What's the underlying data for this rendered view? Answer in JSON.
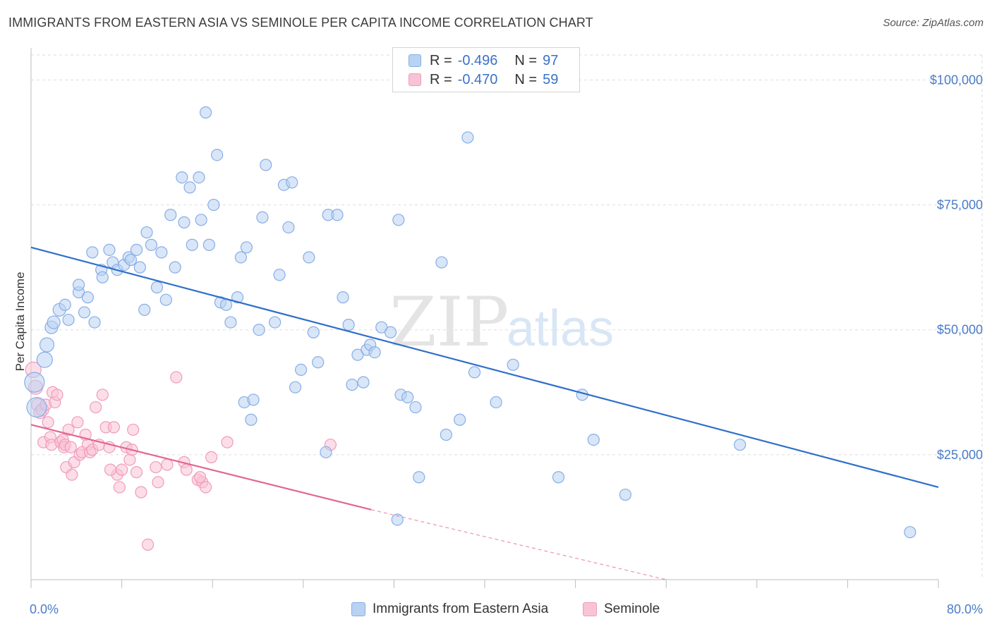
{
  "title": "IMMIGRANTS FROM EASTERN ASIA VS SEMINOLE PER CAPITA INCOME CORRELATION CHART",
  "source": "Source: ZipAtlas.com",
  "watermark": {
    "zip": "ZIP",
    "atlas": "atlas"
  },
  "legend": {
    "rows": [
      {
        "r_label": "R =",
        "r_value": "-0.496",
        "n_label": "N =",
        "n_value": "97"
      },
      {
        "r_label": "R =",
        "r_value": "-0.470",
        "n_label": "N =",
        "n_value": "59"
      }
    ]
  },
  "colors": {
    "blue_fill": "#b9d2f2",
    "blue_stroke": "#86aee6",
    "blue_line": "#2f6fca",
    "pink_fill": "#f9c3d6",
    "pink_stroke": "#f09bbb",
    "pink_line": "#e3668f",
    "grid": "#dddddd",
    "tick_label": "#4a7cc9"
  },
  "chart_data": {
    "type": "scatter",
    "xlabel": "",
    "ylabel": "Per Capita Income",
    "xlim": [
      0,
      80
    ],
    "ylim": [
      0,
      105000
    ],
    "x_tick_labels": [
      "0.0%",
      "80.0%"
    ],
    "y_ticks": [
      25000,
      50000,
      75000,
      100000
    ],
    "y_tick_labels": [
      "$25,000",
      "$50,000",
      "$75,000",
      "$100,000"
    ],
    "grid": true,
    "legend_position": "bottom",
    "series": [
      {
        "name": "Immigrants from Eastern Asia",
        "color": "#b9d2f2",
        "trend": {
          "x": [
            0,
            80
          ],
          "y": [
            66500,
            18500
          ]
        },
        "points": [
          {
            "x": 0.3,
            "y": 39500,
            "r": 14
          },
          {
            "x": 0.5,
            "y": 34500,
            "r": 14
          },
          {
            "x": 1.2,
            "y": 44000,
            "r": 11
          },
          {
            "x": 1.4,
            "y": 47000,
            "r": 10
          },
          {
            "x": 1.8,
            "y": 50500,
            "r": 9
          },
          {
            "x": 2.0,
            "y": 51500,
            "r": 9
          },
          {
            "x": 2.5,
            "y": 54000,
            "r": 9
          },
          {
            "x": 3.0,
            "y": 55000,
            "r": 8
          },
          {
            "x": 3.3,
            "y": 52000,
            "r": 8
          },
          {
            "x": 4.2,
            "y": 57500,
            "r": 8
          },
          {
            "x": 4.2,
            "y": 59000,
            "r": 8
          },
          {
            "x": 4.7,
            "y": 53500,
            "r": 8
          },
          {
            "x": 5.0,
            "y": 56500,
            "r": 8
          },
          {
            "x": 5.4,
            "y": 65500,
            "r": 8
          },
          {
            "x": 5.6,
            "y": 51500,
            "r": 8
          },
          {
            "x": 6.2,
            "y": 62000,
            "r": 8
          },
          {
            "x": 6.3,
            "y": 60500,
            "r": 8
          },
          {
            "x": 6.9,
            "y": 66000,
            "r": 8
          },
          {
            "x": 7.2,
            "y": 63500,
            "r": 8
          },
          {
            "x": 7.6,
            "y": 62000,
            "r": 8
          },
          {
            "x": 8.2,
            "y": 63000,
            "r": 8
          },
          {
            "x": 8.6,
            "y": 64500,
            "r": 8
          },
          {
            "x": 8.8,
            "y": 64000,
            "r": 8
          },
          {
            "x": 9.3,
            "y": 66000,
            "r": 8
          },
          {
            "x": 9.6,
            "y": 62500,
            "r": 8
          },
          {
            "x": 10.0,
            "y": 54000,
            "r": 8
          },
          {
            "x": 10.2,
            "y": 69500,
            "r": 8
          },
          {
            "x": 10.6,
            "y": 67000,
            "r": 8
          },
          {
            "x": 11.1,
            "y": 58500,
            "r": 8
          },
          {
            "x": 11.5,
            "y": 65500,
            "r": 8
          },
          {
            "x": 11.9,
            "y": 56000,
            "r": 8
          },
          {
            "x": 12.3,
            "y": 73000,
            "r": 8
          },
          {
            "x": 12.7,
            "y": 62500,
            "r": 8
          },
          {
            "x": 13.3,
            "y": 80500,
            "r": 8
          },
          {
            "x": 13.5,
            "y": 71500,
            "r": 8
          },
          {
            "x": 14.0,
            "y": 78500,
            "r": 8
          },
          {
            "x": 14.2,
            "y": 67000,
            "r": 8
          },
          {
            "x": 14.8,
            "y": 80500,
            "r": 8
          },
          {
            "x": 15.0,
            "y": 72000,
            "r": 8
          },
          {
            "x": 15.4,
            "y": 93500,
            "r": 8
          },
          {
            "x": 15.7,
            "y": 67000,
            "r": 8
          },
          {
            "x": 16.1,
            "y": 75000,
            "r": 8
          },
          {
            "x": 16.4,
            "y": 85000,
            "r": 8
          },
          {
            "x": 16.7,
            "y": 55500,
            "r": 8
          },
          {
            "x": 17.2,
            "y": 55000,
            "r": 8
          },
          {
            "x": 17.6,
            "y": 51500,
            "r": 8
          },
          {
            "x": 18.2,
            "y": 56500,
            "r": 8
          },
          {
            "x": 18.5,
            "y": 64500,
            "r": 8
          },
          {
            "x": 18.8,
            "y": 35500,
            "r": 8
          },
          {
            "x": 19.0,
            "y": 66500,
            "r": 8
          },
          {
            "x": 19.4,
            "y": 32000,
            "r": 8
          },
          {
            "x": 19.6,
            "y": 36000,
            "r": 8
          },
          {
            "x": 20.1,
            "y": 50000,
            "r": 8
          },
          {
            "x": 20.4,
            "y": 72500,
            "r": 8
          },
          {
            "x": 20.7,
            "y": 83000,
            "r": 8
          },
          {
            "x": 21.5,
            "y": 51500,
            "r": 8
          },
          {
            "x": 21.9,
            "y": 61000,
            "r": 8
          },
          {
            "x": 22.3,
            "y": 79000,
            "r": 8
          },
          {
            "x": 22.7,
            "y": 70500,
            "r": 8
          },
          {
            "x": 23.0,
            "y": 79500,
            "r": 8
          },
          {
            "x": 23.3,
            "y": 38500,
            "r": 8
          },
          {
            "x": 23.8,
            "y": 42000,
            "r": 8
          },
          {
            "x": 24.5,
            "y": 64500,
            "r": 8
          },
          {
            "x": 24.9,
            "y": 49500,
            "r": 8
          },
          {
            "x": 25.3,
            "y": 43500,
            "r": 8
          },
          {
            "x": 26.0,
            "y": 25500,
            "r": 8
          },
          {
            "x": 26.2,
            "y": 73000,
            "r": 8
          },
          {
            "x": 27.0,
            "y": 73000,
            "r": 8
          },
          {
            "x": 27.5,
            "y": 56500,
            "r": 8
          },
          {
            "x": 28.0,
            "y": 51000,
            "r": 8
          },
          {
            "x": 28.3,
            "y": 39000,
            "r": 8
          },
          {
            "x": 28.8,
            "y": 45000,
            "r": 8
          },
          {
            "x": 29.3,
            "y": 39500,
            "r": 8
          },
          {
            "x": 29.6,
            "y": 46000,
            "r": 8
          },
          {
            "x": 29.9,
            "y": 47000,
            "r": 8
          },
          {
            "x": 30.3,
            "y": 45500,
            "r": 8
          },
          {
            "x": 30.9,
            "y": 50500,
            "r": 8
          },
          {
            "x": 31.7,
            "y": 49500,
            "r": 8
          },
          {
            "x": 32.3,
            "y": 12000,
            "r": 8
          },
          {
            "x": 32.4,
            "y": 72000,
            "r": 8
          },
          {
            "x": 32.6,
            "y": 37000,
            "r": 8
          },
          {
            "x": 33.2,
            "y": 36500,
            "r": 8
          },
          {
            "x": 33.9,
            "y": 34500,
            "r": 8
          },
          {
            "x": 34.2,
            "y": 20500,
            "r": 8
          },
          {
            "x": 36.2,
            "y": 63500,
            "r": 8
          },
          {
            "x": 36.6,
            "y": 29000,
            "r": 8
          },
          {
            "x": 37.8,
            "y": 32000,
            "r": 8
          },
          {
            "x": 38.5,
            "y": 88500,
            "r": 8
          },
          {
            "x": 39.1,
            "y": 41500,
            "r": 8
          },
          {
            "x": 41.0,
            "y": 35500,
            "r": 8
          },
          {
            "x": 42.5,
            "y": 43000,
            "r": 8
          },
          {
            "x": 46.5,
            "y": 20500,
            "r": 8
          },
          {
            "x": 48.6,
            "y": 37000,
            "r": 8
          },
          {
            "x": 49.6,
            "y": 28000,
            "r": 8
          },
          {
            "x": 52.4,
            "y": 17000,
            "r": 8
          },
          {
            "x": 62.5,
            "y": 27000,
            "r": 8
          },
          {
            "x": 77.5,
            "y": 9500,
            "r": 8
          }
        ]
      },
      {
        "name": "Seminole",
        "color": "#f9c3d6",
        "trend": {
          "x": [
            0,
            30
          ],
          "y": [
            31000,
            14000
          ],
          "dashed_to": {
            "x": 56,
            "y": 0
          }
        },
        "points": [
          {
            "x": 0.2,
            "y": 42000,
            "r": 11
          },
          {
            "x": 0.4,
            "y": 38500,
            "r": 10
          },
          {
            "x": 0.6,
            "y": 35000,
            "r": 9
          },
          {
            "x": 0.8,
            "y": 33500,
            "r": 9
          },
          {
            "x": 1.0,
            "y": 34000,
            "r": 9
          },
          {
            "x": 1.1,
            "y": 27500,
            "r": 8
          },
          {
            "x": 1.3,
            "y": 35000,
            "r": 8
          },
          {
            "x": 1.5,
            "y": 31500,
            "r": 8
          },
          {
            "x": 1.7,
            "y": 28500,
            "r": 8
          },
          {
            "x": 1.8,
            "y": 27000,
            "r": 8
          },
          {
            "x": 1.9,
            "y": 37500,
            "r": 8
          },
          {
            "x": 2.1,
            "y": 35500,
            "r": 8
          },
          {
            "x": 2.3,
            "y": 37000,
            "r": 8
          },
          {
            "x": 2.6,
            "y": 27500,
            "r": 8
          },
          {
            "x": 2.8,
            "y": 28000,
            "r": 8
          },
          {
            "x": 2.9,
            "y": 26500,
            "r": 8
          },
          {
            "x": 3.0,
            "y": 27000,
            "r": 8
          },
          {
            "x": 3.1,
            "y": 22500,
            "r": 8
          },
          {
            "x": 3.3,
            "y": 30000,
            "r": 8
          },
          {
            "x": 3.5,
            "y": 26500,
            "r": 8
          },
          {
            "x": 3.6,
            "y": 21000,
            "r": 8
          },
          {
            "x": 3.8,
            "y": 23500,
            "r": 8
          },
          {
            "x": 4.1,
            "y": 31500,
            "r": 8
          },
          {
            "x": 4.3,
            "y": 25000,
            "r": 8
          },
          {
            "x": 4.5,
            "y": 25500,
            "r": 8
          },
          {
            "x": 4.8,
            "y": 29000,
            "r": 8
          },
          {
            "x": 5.0,
            "y": 27000,
            "r": 8
          },
          {
            "x": 5.2,
            "y": 25500,
            "r": 8
          },
          {
            "x": 5.4,
            "y": 26000,
            "r": 8
          },
          {
            "x": 5.7,
            "y": 34500,
            "r": 8
          },
          {
            "x": 6.0,
            "y": 27000,
            "r": 8
          },
          {
            "x": 6.3,
            "y": 37000,
            "r": 8
          },
          {
            "x": 6.6,
            "y": 30500,
            "r": 8
          },
          {
            "x": 6.9,
            "y": 26500,
            "r": 8
          },
          {
            "x": 7.3,
            "y": 30500,
            "r": 8
          },
          {
            "x": 7.6,
            "y": 21000,
            "r": 8
          },
          {
            "x": 7.8,
            "y": 18500,
            "r": 8
          },
          {
            "x": 8.0,
            "y": 22000,
            "r": 8
          },
          {
            "x": 8.4,
            "y": 26500,
            "r": 8
          },
          {
            "x": 8.7,
            "y": 24000,
            "r": 8
          },
          {
            "x": 8.9,
            "y": 26000,
            "r": 8
          },
          {
            "x": 9.0,
            "y": 30000,
            "r": 8
          },
          {
            "x": 9.3,
            "y": 21500,
            "r": 8
          },
          {
            "x": 9.7,
            "y": 17500,
            "r": 8
          },
          {
            "x": 10.3,
            "y": 7000,
            "r": 8
          },
          {
            "x": 11.0,
            "y": 22500,
            "r": 8
          },
          {
            "x": 11.2,
            "y": 19500,
            "r": 8
          },
          {
            "x": 12.0,
            "y": 23000,
            "r": 8
          },
          {
            "x": 12.8,
            "y": 40500,
            "r": 8
          },
          {
            "x": 13.5,
            "y": 23500,
            "r": 8
          },
          {
            "x": 13.7,
            "y": 22000,
            "r": 8
          },
          {
            "x": 14.7,
            "y": 20000,
            "r": 8
          },
          {
            "x": 15.1,
            "y": 19500,
            "r": 8
          },
          {
            "x": 15.4,
            "y": 18500,
            "r": 8
          },
          {
            "x": 15.9,
            "y": 24500,
            "r": 8
          },
          {
            "x": 17.3,
            "y": 27500,
            "r": 8
          },
          {
            "x": 26.4,
            "y": 27000,
            "r": 8
          },
          {
            "x": 14.9,
            "y": 20500,
            "r": 8
          },
          {
            "x": 7.0,
            "y": 22000,
            "r": 8
          }
        ]
      }
    ]
  }
}
